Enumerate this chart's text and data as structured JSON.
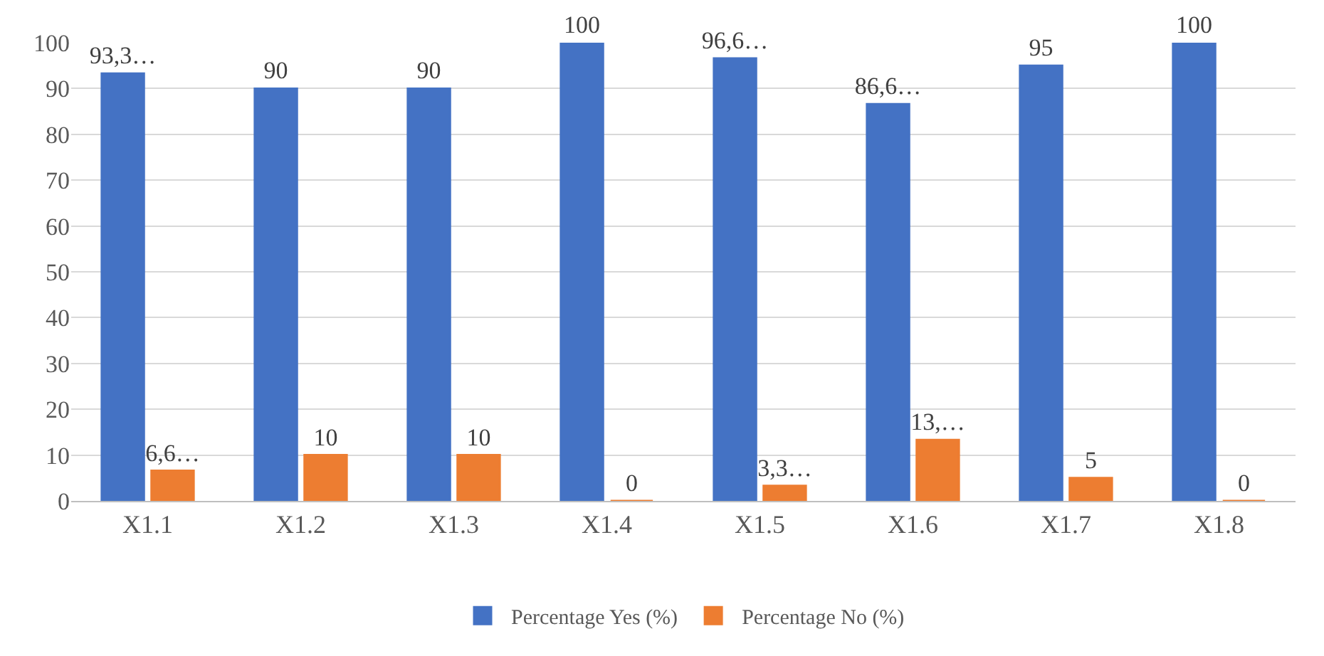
{
  "chart_data": {
    "type": "bar",
    "categories": [
      "X1.1",
      "X1.2",
      "X1.3",
      "X1.4",
      "X1.5",
      "X1.6",
      "X1.7",
      "X1.8"
    ],
    "series": [
      {
        "name": "Percentage Yes (%)",
        "color": "#4472c4",
        "values": [
          93.3,
          90,
          90,
          100,
          96.6,
          86.6,
          95,
          100
        ],
        "value_labels": [
          "93,3…",
          "90",
          "90",
          "100",
          "96,6…",
          "86,6…",
          "95",
          "100"
        ]
      },
      {
        "name": "Percentage No (%)",
        "color": "#ed7d31",
        "values": [
          6.6,
          10,
          10,
          0,
          3.3,
          13.3,
          5,
          0
        ],
        "value_labels": [
          "6,6…",
          "10",
          "10",
          "0",
          "3,3…",
          "13,…",
          "5",
          "0"
        ]
      }
    ],
    "ylim": [
      0,
      100
    ],
    "yticks": [
      0,
      10,
      20,
      30,
      40,
      50,
      60,
      70,
      80,
      90,
      100
    ],
    "grid": "y",
    "legend": "bottom"
  }
}
